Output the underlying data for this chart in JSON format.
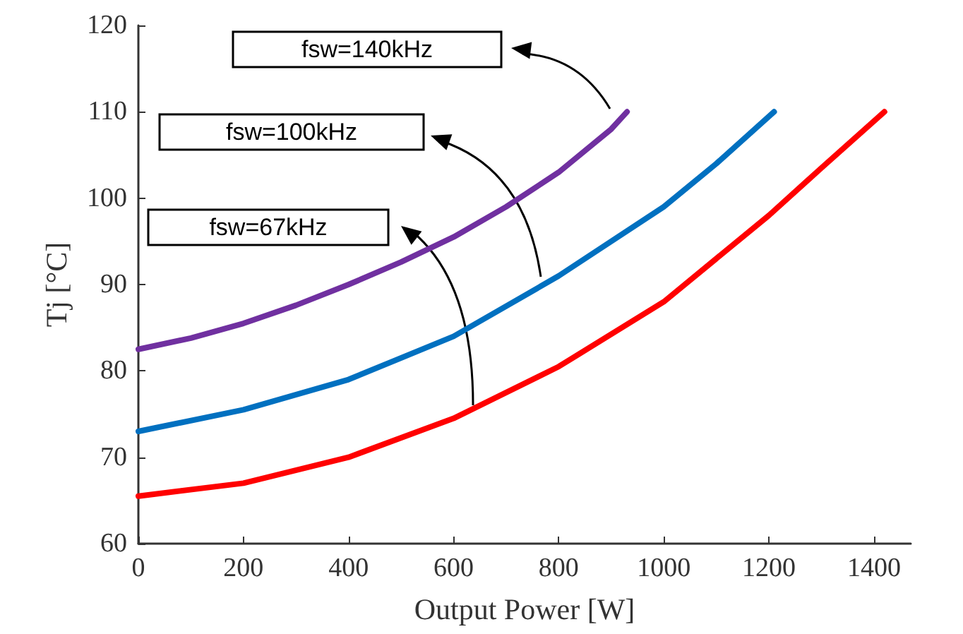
{
  "chart_data": {
    "type": "line",
    "xlabel": "Output Power [W]",
    "ylabel": "Tj [°C]",
    "xlim": [
      0,
      1470
    ],
    "xticks": [
      0,
      200,
      400,
      600,
      800,
      1000,
      1200,
      1400
    ],
    "ylim": [
      60,
      120
    ],
    "yticks": [
      60,
      70,
      80,
      90,
      100,
      110,
      120
    ],
    "grid": false,
    "marker": "none",
    "line_style": "solid",
    "series": [
      {
        "color": "#7030a0",
        "x": [
          0,
          100,
          200,
          300,
          400,
          500,
          600,
          700,
          800,
          900,
          930
        ],
        "values": [
          82.5,
          83.8,
          85.5,
          87.6,
          90,
          92.6,
          95.5,
          99,
          103,
          108,
          110
        ]
      },
      {
        "color": "#0070c0",
        "x": [
          0,
          200,
          400,
          600,
          800,
          1000,
          1100,
          1210
        ],
        "values": [
          73,
          75.5,
          79,
          84,
          91,
          99,
          104,
          110
        ]
      },
      {
        "color": "#ff0000",
        "x": [
          0,
          200,
          400,
          600,
          800,
          1000,
          1200,
          1300,
          1420
        ],
        "values": [
          65.5,
          67,
          70,
          74.5,
          80.5,
          88,
          98,
          103.5,
          110
        ]
      }
    ],
    "annotations": [
      "fsw=140kHz",
      "fsw=100kHz",
      "fsw=67kHz"
    ]
  }
}
